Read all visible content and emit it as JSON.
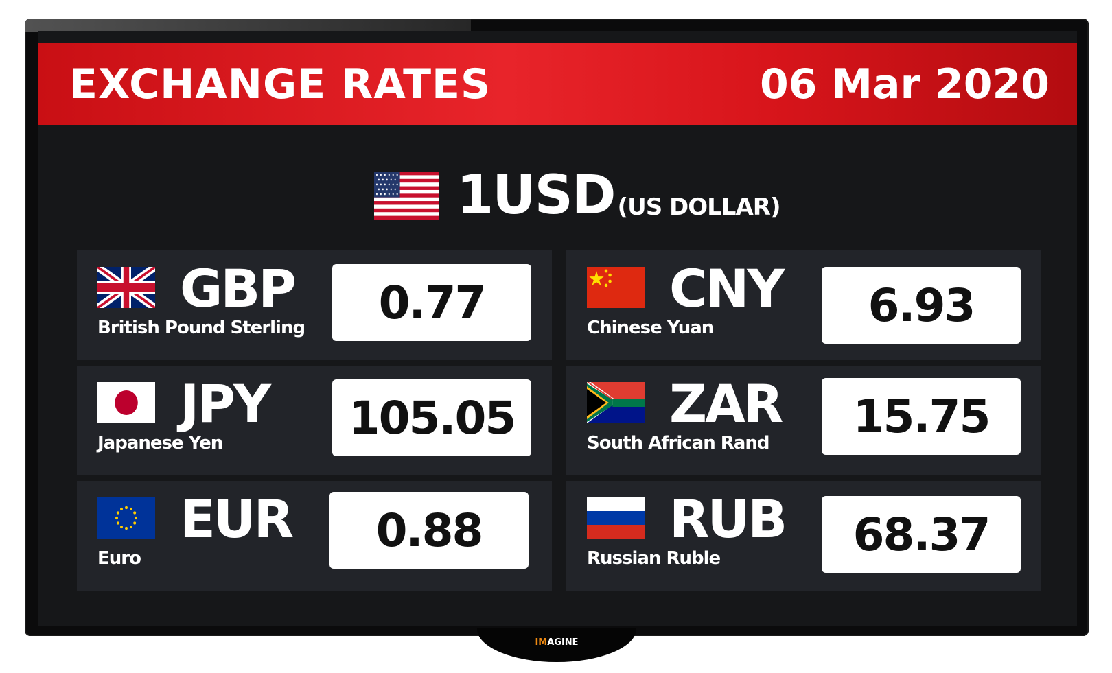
{
  "header": {
    "title": "EXCHANGE RATES",
    "date": "06 Mar 2020"
  },
  "base": {
    "flag": "us-flag",
    "code": "1USD",
    "name": "(US DOLLAR)"
  },
  "rates": [
    {
      "code": "GBP",
      "name": "British Pound Sterling",
      "value": "0.77",
      "flag": "uk-flag"
    },
    {
      "code": "CNY",
      "name": "Chinese Yuan",
      "value": "6.93",
      "flag": "china-flag"
    },
    {
      "code": "JPY",
      "name": "Japanese Yen",
      "value": "105.05",
      "flag": "japan-flag"
    },
    {
      "code": "ZAR",
      "name": "South African Rand",
      "value": "15.75",
      "flag": "south-africa-flag"
    },
    {
      "code": "EUR",
      "name": "Euro",
      "value": "0.88",
      "flag": "eu-flag"
    },
    {
      "code": "RUB",
      "name": "Russian Ruble",
      "value": "68.37",
      "flag": "russia-flag"
    }
  ],
  "brand": {
    "prefix": "IM",
    "rest": "AGINE"
  },
  "colors": {
    "header_red": "#e8242a",
    "panel": "#222429",
    "background": "#161719"
  }
}
